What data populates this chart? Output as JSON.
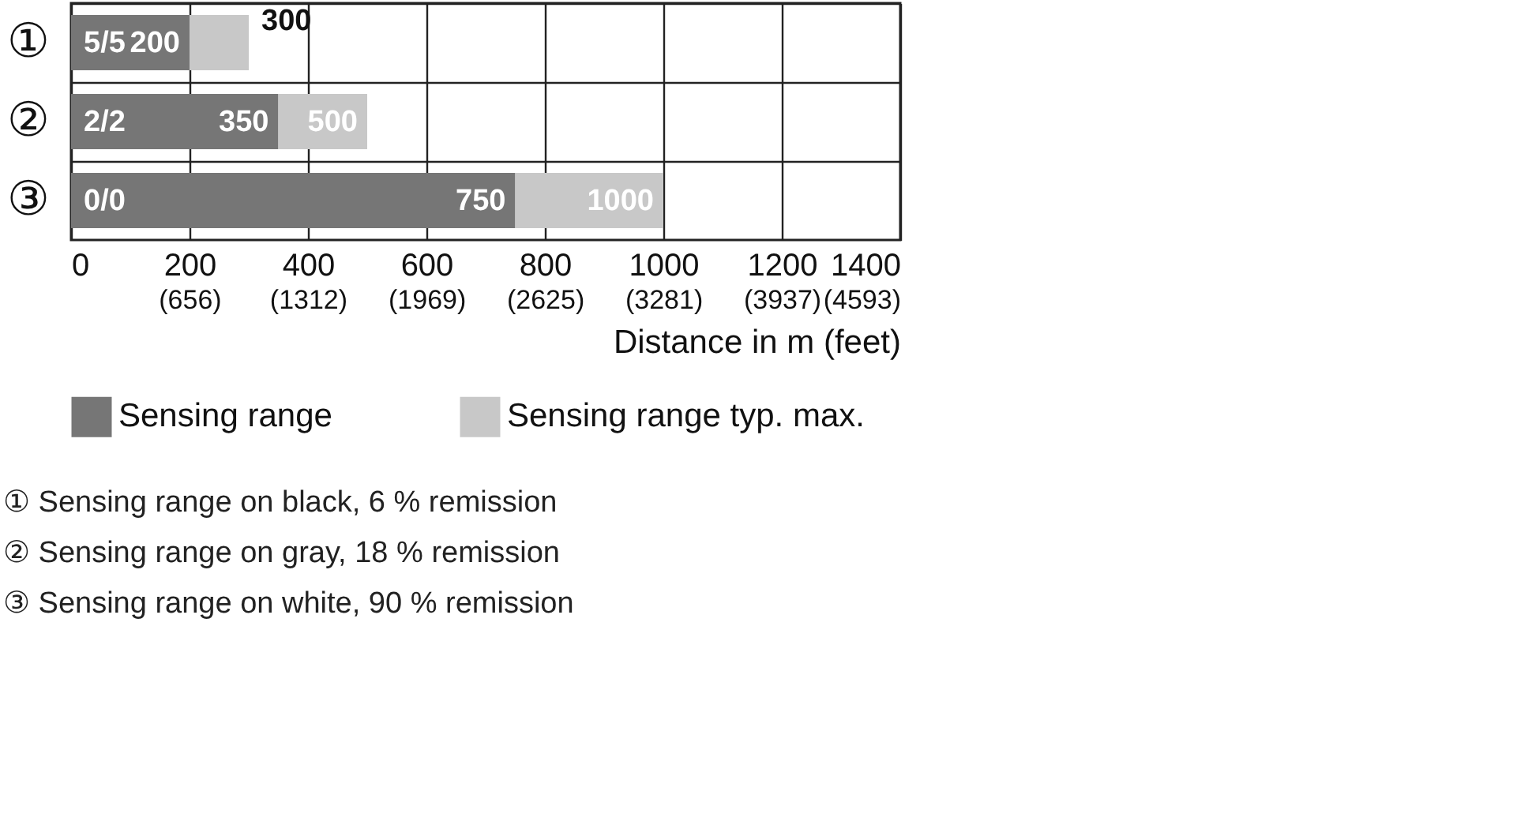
{
  "chart_data": {
    "type": "bar",
    "orientation": "horizontal",
    "categories": [
      "①",
      "②",
      "③"
    ],
    "series": [
      {
        "name": "Sensing range",
        "color": "#767676",
        "values": [
          200,
          350,
          750
        ],
        "value_labels": [
          "200",
          "350",
          "750"
        ]
      },
      {
        "name": "Sensing range typ. max.",
        "color": "#c8c8c8",
        "values": [
          100,
          150,
          250
        ]
      }
    ],
    "stacked": true,
    "xlim": [
      0,
      1400
    ],
    "xticks": [
      0,
      200,
      400,
      600,
      800,
      1000,
      1200,
      1400
    ],
    "x2lim": [
      0,
      4593
    ],
    "x2ticks": [
      {
        "value": 656,
        "label": "(656)"
      },
      {
        "value": 1312,
        "label": "(1312)"
      },
      {
        "value": 1969,
        "label": "(1969)"
      },
      {
        "value": 2625,
        "label": "(2625)"
      },
      {
        "value": 3281,
        "label": "(3281)"
      },
      {
        "value": 3937,
        "label": "(3937)"
      },
      {
        "value": 4593,
        "label": "(4593)"
      }
    ],
    "xlabel": "Distance in m (feet)",
    "grid": true,
    "legend": "bottom",
    "annotations": [
      {
        "text": "5/5",
        "y": "①"
      },
      {
        "text": "2/2",
        "y": "②"
      },
      {
        "text": "0/0",
        "y": "③"
      },
      {
        "text": "300",
        "x": 300,
        "y": "①"
      },
      {
        "text": "500",
        "x": 500,
        "y": "②"
      },
      {
        "text": "1000",
        "x": 1000,
        "y": "③"
      },
      "① Sensing range on black, 6 % remission",
      "② Sensing range on gray, 18 % remission",
      "③ Sensing range on white, 90 % remission"
    ]
  }
}
